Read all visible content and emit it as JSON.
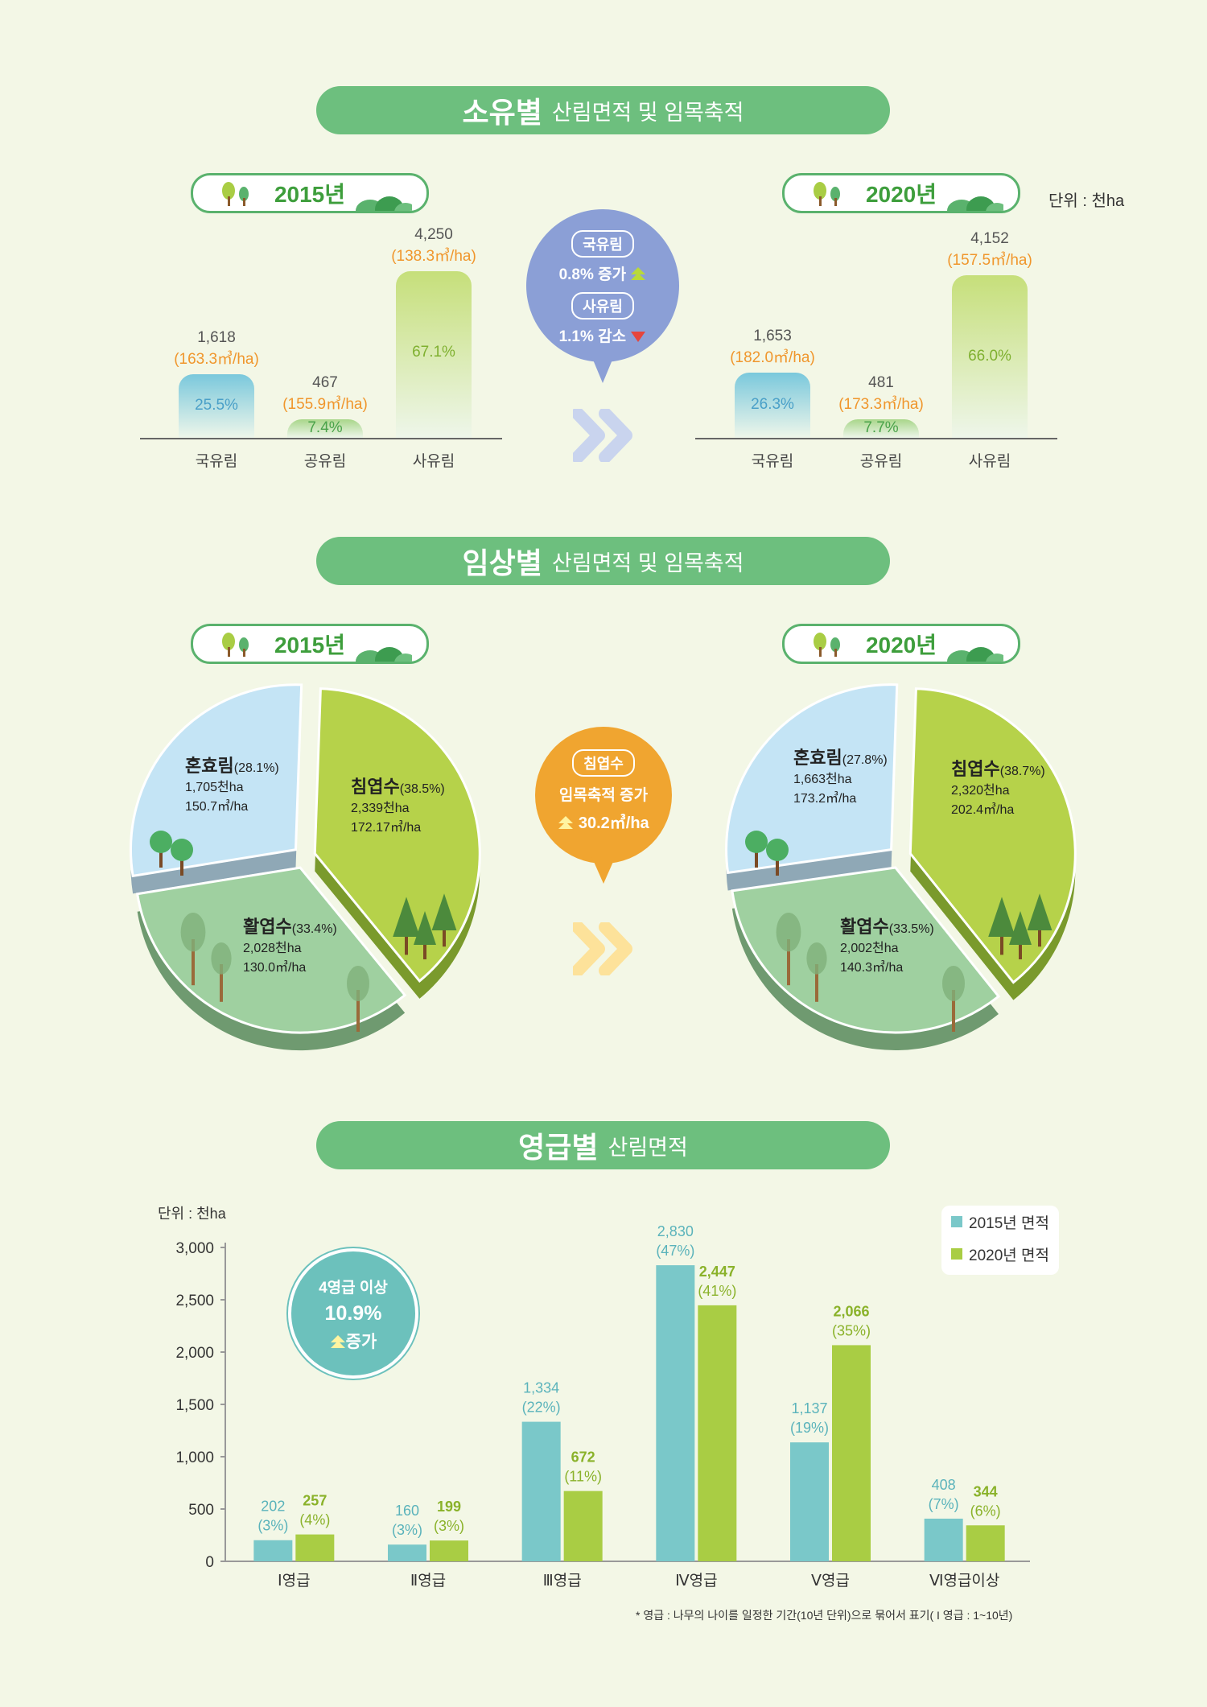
{
  "colors": {
    "banner": "#6dbf7e",
    "blue": "#7ac8c9",
    "green": "#a9cd44",
    "orange": "#f0962c",
    "bubble_purple": "#8b9fd6",
    "bubble_orange": "#f0a530",
    "bubble_teal": "#6cc1bc"
  },
  "unit_text": "단위 : 천ha",
  "section1": {
    "title_strong": "소유별",
    "title_light": "산림면적 및 임목축적",
    "year_2015": "2015년",
    "year_2020": "2020년",
    "categories": [
      "국유림",
      "공유림",
      "사유림"
    ],
    "bars_2015": [
      {
        "value": "1,618",
        "density": "(163.3㎥/ha)",
        "pct": "25.5%",
        "area": 1618
      },
      {
        "value": "467",
        "density": "(155.9㎥/ha)",
        "pct": "7.4%",
        "area": 467
      },
      {
        "value": "4,250",
        "density": "(138.3㎥/ha)",
        "pct": "67.1%",
        "area": 4250
      }
    ],
    "bars_2020": [
      {
        "value": "1,653",
        "density": "(182.0㎥/ha)",
        "pct": "26.3%",
        "area": 1653
      },
      {
        "value": "481",
        "density": "(173.3㎥/ha)",
        "pct": "7.7%",
        "area": 481
      },
      {
        "value": "4,152",
        "density": "(157.5㎥/ha)",
        "pct": "66.0%",
        "area": 4152
      }
    ],
    "bubble": {
      "tag1": "국유림",
      "line1": "0.8% 증가",
      "tag2": "사유림",
      "line2": "1.1% 감소"
    }
  },
  "section2": {
    "title_strong": "임상별",
    "title_light": "산림면적 및 임목축적",
    "year_2015": "2015년",
    "year_2020": "2020년",
    "pie_2015": [
      {
        "name": "혼효림",
        "pct": "(28.1%)",
        "area": "1,705천ha",
        "density": "150.7㎥/ha",
        "share": 28.1
      },
      {
        "name": "침엽수",
        "pct": "(38.5%)",
        "area": "2,339천ha",
        "density": "172.17㎥/ha",
        "share": 38.5
      },
      {
        "name": "활엽수",
        "pct": "(33.4%)",
        "area": "2,028천ha",
        "density": "130.0㎥/ha",
        "share": 33.4
      }
    ],
    "pie_2020": [
      {
        "name": "혼효림",
        "pct": "(27.8%)",
        "area": "1,663천ha",
        "density": "173.2㎥/ha",
        "share": 27.8
      },
      {
        "name": "침엽수",
        "pct": "(38.7%)",
        "area": "2,320천ha",
        "density": "202.4㎥/ha",
        "share": 38.7
      },
      {
        "name": "활엽수",
        "pct": "(33.5%)",
        "area": "2,002천ha",
        "density": "140.3㎥/ha",
        "share": 33.5
      }
    ],
    "bubble": {
      "tag": "침엽수",
      "line1": "임목축적 증가",
      "line2": "30.2㎥/ha"
    }
  },
  "section3": {
    "title_strong": "영급별",
    "title_light": "산림면적",
    "unit_text": "단위 : 천ha",
    "bubble": {
      "line1": "4영급 이상",
      "line2": "10.9%",
      "line3": "증가"
    },
    "legend": [
      "2015년 면적",
      "2020년 면적"
    ],
    "note": "* 영급 : 나무의 나이를 일정한 기간(10년 단위)으로 묶어서 표기( I 영급 : 1~10년)"
  },
  "chart_data": {
    "type": "bar",
    "categories": [
      "Ⅰ영급",
      "Ⅱ영급",
      "Ⅲ영급",
      "Ⅳ영급",
      "Ⅴ영급",
      "Ⅵ영급이상"
    ],
    "series": [
      {
        "name": "2015년 면적",
        "values": [
          202,
          160,
          1334,
          2830,
          1137,
          408
        ],
        "labels": [
          "202",
          "160",
          "1,334",
          "2,830",
          "1,137",
          "408"
        ],
        "pcts": [
          "(3%)",
          "(3%)",
          "(22%)",
          "(47%)",
          "(19%)",
          "(7%)"
        ]
      },
      {
        "name": "2020년 면적",
        "values": [
          257,
          199,
          672,
          2447,
          2066,
          344
        ],
        "labels": [
          "257",
          "199",
          "672",
          "2,447",
          "2,066",
          "344"
        ],
        "pcts": [
          "(4%)",
          "(3%)",
          "(11%)",
          "(41%)",
          "(35%)",
          "(6%)"
        ]
      }
    ],
    "ylim": [
      0,
      3000
    ],
    "yticks": [
      "0",
      "500",
      "1,000",
      "1,500",
      "2,000",
      "2,500",
      "3,000"
    ],
    "grid": false,
    "legend_position": "top-right"
  }
}
